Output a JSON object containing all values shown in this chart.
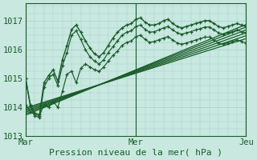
{
  "title": "",
  "xlabel": "Pression niveau de la mer( hPa )",
  "ylabel": "",
  "bg_color": "#c8e8e0",
  "grid_color": "#a8cec8",
  "line_color": "#1a5c2a",
  "text_color": "#1a5c2a",
  "xlim": [
    0,
    48
  ],
  "ylim": [
    1013.0,
    1017.6
  ],
  "yticks": [
    1013,
    1014,
    1015,
    1016,
    1017
  ],
  "xtick_positions": [
    0,
    24,
    48
  ],
  "xtick_labels": [
    "Mar",
    "Mer",
    "Jeu"
  ],
  "vlines": [
    0,
    24,
    48
  ],
  "wavy_series": [
    [
      1015.0,
      1014.1,
      1013.8,
      1013.75,
      1014.85,
      1015.1,
      1015.3,
      1014.9,
      1015.65,
      1016.15,
      1016.7,
      1016.85,
      1016.6,
      1016.3,
      1016.05,
      1015.85,
      1015.75,
      1015.9,
      1016.15,
      1016.4,
      1016.6,
      1016.75,
      1016.85,
      1016.9,
      1017.05,
      1017.1,
      1016.95,
      1016.85,
      1016.85,
      1016.9,
      1017.0,
      1017.05,
      1016.9,
      1016.8,
      1016.75,
      1016.8,
      1016.85,
      1016.9,
      1016.95,
      1017.0,
      1017.0,
      1016.9,
      1016.8,
      1016.75,
      1016.8,
      1016.85,
      1016.9,
      1016.85,
      1016.8
    ],
    [
      1015.0,
      1014.05,
      1013.7,
      1013.65,
      1014.7,
      1015.0,
      1015.15,
      1014.75,
      1015.45,
      1015.9,
      1016.5,
      1016.65,
      1016.35,
      1016.0,
      1015.75,
      1015.6,
      1015.5,
      1015.65,
      1015.9,
      1016.1,
      1016.3,
      1016.5,
      1016.6,
      1016.65,
      1016.8,
      1016.85,
      1016.7,
      1016.6,
      1016.62,
      1016.68,
      1016.75,
      1016.8,
      1016.68,
      1016.58,
      1016.53,
      1016.58,
      1016.62,
      1016.68,
      1016.72,
      1016.78,
      1016.78,
      1016.68,
      1016.58,
      1016.53,
      1016.58,
      1016.62,
      1016.68,
      1016.62,
      1016.58
    ],
    [
      1014.1,
      1013.85,
      1013.75,
      1013.7,
      1014.1,
      1014.0,
      1014.2,
      1014.0,
      1014.55,
      1015.15,
      1015.25,
      1014.85,
      1015.35,
      1015.5,
      1015.4,
      1015.3,
      1015.25,
      1015.4,
      1015.6,
      1015.8,
      1015.95,
      1016.15,
      1016.25,
      1016.3,
      1016.45,
      1016.5,
      1016.35,
      1016.25,
      1016.28,
      1016.34,
      1016.4,
      1016.45,
      1016.33,
      1016.23,
      1016.18,
      1016.23,
      1016.28,
      1016.33,
      1016.38,
      1016.43,
      1016.43,
      1016.33,
      1016.23,
      1016.18,
      1016.23,
      1016.28,
      1016.33,
      1016.28,
      1016.23
    ]
  ],
  "straight_series": [
    [
      1013.73,
      1016.87
    ],
    [
      1013.78,
      1016.78
    ],
    [
      1013.83,
      1016.68
    ],
    [
      1013.88,
      1016.58
    ],
    [
      1013.93,
      1016.48
    ],
    [
      1013.98,
      1016.38
    ]
  ]
}
